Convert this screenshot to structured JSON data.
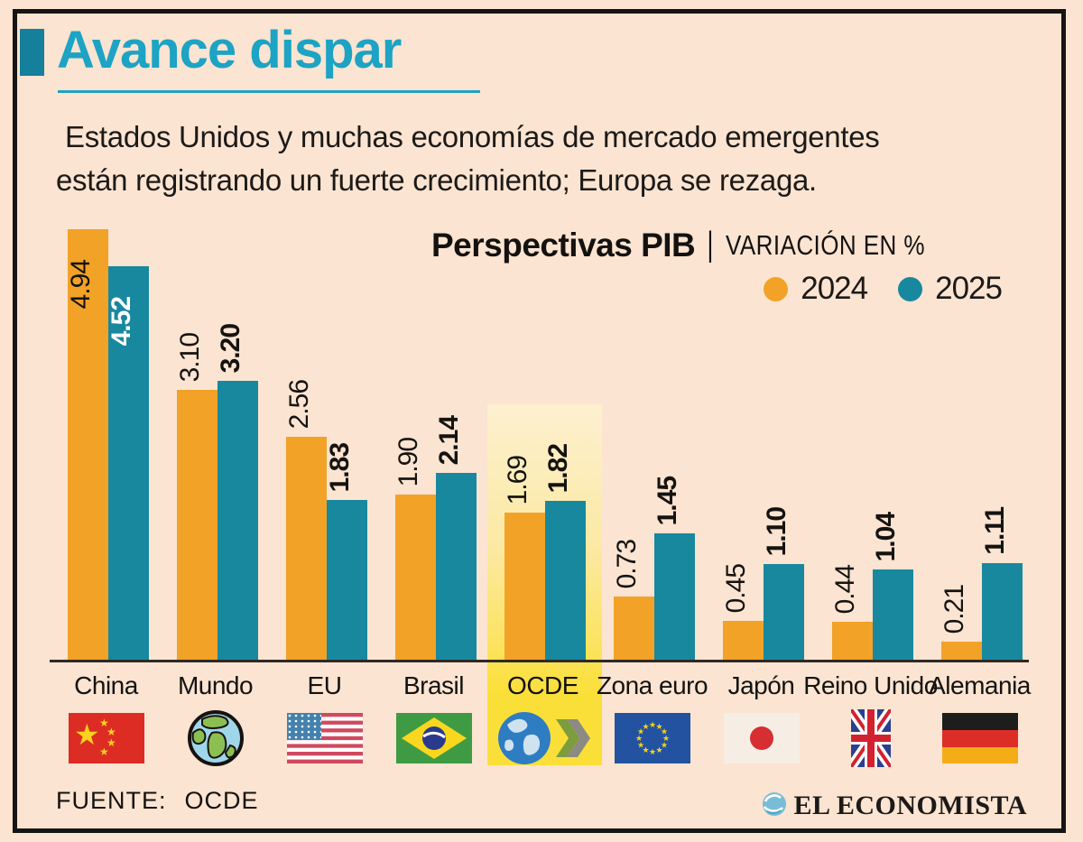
{
  "header": {
    "title": "Avance dispar",
    "subtitle_line1": "Estados Unidos y muchas economías de mercado emergentes",
    "subtitle_line2": "están registrando un fuerte crecimiento; Europa se rezaga."
  },
  "chart_header": {
    "title": "Perspectivas PIB",
    "separator": "|",
    "units_label": "VARIACIÓN EN %"
  },
  "legend": {
    "items": [
      {
        "label": "2024",
        "color": "#f2a227"
      },
      {
        "label": "2025",
        "color": "#18889f"
      }
    ]
  },
  "chart_data": {
    "type": "bar",
    "title": "Perspectivas PIB",
    "units": "VARIACIÓN EN %",
    "categories": [
      "China",
      "Mundo",
      "EU",
      "Brasil",
      "OCDE",
      "Zona euro",
      "Japón",
      "Reino Unido",
      "Alemania"
    ],
    "series": [
      {
        "name": "2024",
        "color": "#f2a227",
        "values": [
          4.94,
          3.1,
          2.56,
          1.9,
          1.69,
          0.73,
          0.45,
          0.44,
          0.21
        ]
      },
      {
        "name": "2025",
        "color": "#18889f",
        "values": [
          4.52,
          3.2,
          1.83,
          2.14,
          1.82,
          1.45,
          1.1,
          1.04,
          1.11
        ]
      }
    ],
    "ylim": [
      0,
      5.1
    ],
    "grid": false,
    "legend_position": "top-right",
    "highlighted_category": "OCDE",
    "highlight_color": "#fbdf39",
    "value_label_style": "rotated 90°, 2025 values bold, China labels inside bars"
  },
  "footer": {
    "source_label": "FUENTE:",
    "source_value": "OCDE",
    "brand": "EL ECONOMISTA"
  },
  "colors": {
    "background": "#fbe4d1",
    "frame": "#171513",
    "title": "#1da3c4",
    "title_square": "#15809b",
    "bar_2024": "#f2a227",
    "bar_2025": "#18889f",
    "highlight": "#fbdf39"
  }
}
